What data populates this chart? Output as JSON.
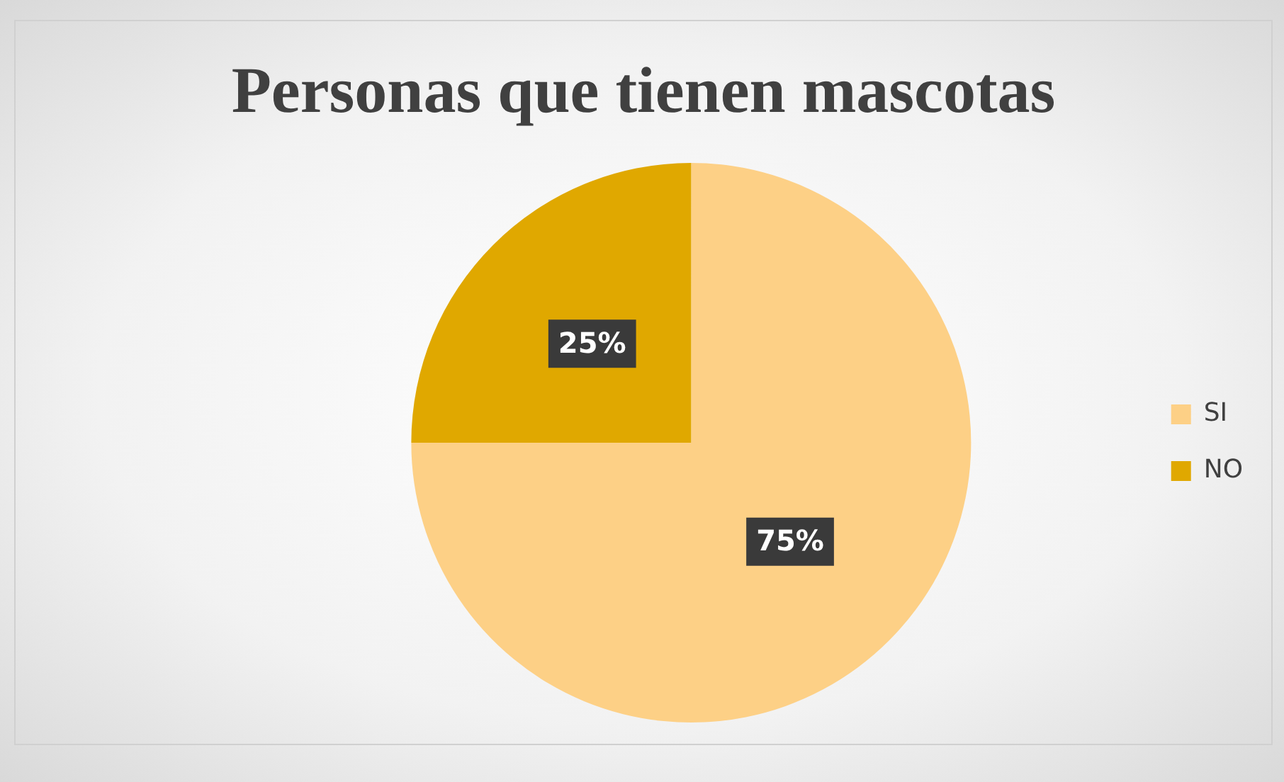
{
  "chart_data": {
    "type": "pie",
    "title": "Personas que tienen mascotas",
    "categories": [
      "SI",
      "NO"
    ],
    "values": [
      75,
      25
    ],
    "colors": [
      "#fdd086",
      "#e0a800"
    ],
    "value_labels": [
      "75%",
      "25%"
    ],
    "legend": "right"
  }
}
